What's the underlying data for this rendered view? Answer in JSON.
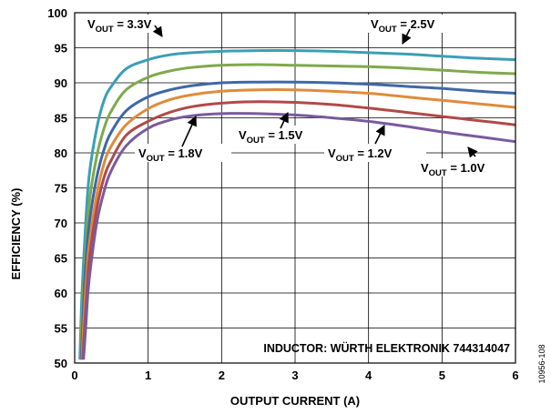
{
  "chart_data": {
    "type": "line",
    "xlabel": "OUTPUT CURRENT (A)",
    "ylabel": "EFFICIENCY (%)",
    "xlim": [
      0,
      6
    ],
    "ylim": [
      50,
      100
    ],
    "x_ticks": [
      "0",
      "1",
      "2",
      "3",
      "4",
      "5",
      "6"
    ],
    "y_ticks": [
      "50",
      "55",
      "60",
      "65",
      "70",
      "75",
      "80",
      "85",
      "90",
      "95",
      "100"
    ],
    "grid": true,
    "annotation": "INDUCTOR: WÜRTH ELEKTRONIK 744314047",
    "figure_id": "10956-108",
    "series": [
      {
        "name": "VOUT = 3.3V",
        "color": "#3a9fb5",
        "x": [
          0.07,
          0.1,
          0.15,
          0.2,
          0.3,
          0.4,
          0.5,
          0.7,
          1.0,
          1.3,
          1.6,
          2.0,
          2.5,
          3.0,
          3.5,
          4.0,
          4.5,
          5.0,
          5.5,
          6.0
        ],
        "y": [
          50.5,
          60,
          70,
          77,
          83.5,
          87.5,
          89.5,
          92,
          93.3,
          94,
          94.3,
          94.5,
          94.6,
          94.6,
          94.5,
          94.3,
          94.1,
          93.8,
          93.5,
          93.3
        ]
      },
      {
        "name": "VOUT = 2.5V",
        "color": "#7fa94a",
        "x": [
          0.08,
          0.1,
          0.15,
          0.2,
          0.3,
          0.4,
          0.5,
          0.7,
          1.0,
          1.3,
          1.6,
          2.0,
          2.5,
          3.0,
          3.5,
          4.0,
          4.5,
          5.0,
          5.5,
          6.0
        ],
        "y": [
          50.5,
          57,
          66,
          73,
          79.5,
          83.5,
          86,
          89,
          90.8,
          91.7,
          92.2,
          92.5,
          92.6,
          92.5,
          92.4,
          92.3,
          92.1,
          91.8,
          91.5,
          91.3
        ]
      },
      {
        "name": "VOUT = 1.8V",
        "color": "#3e68a8",
        "x": [
          0.09,
          0.12,
          0.15,
          0.2,
          0.3,
          0.4,
          0.5,
          0.7,
          1.0,
          1.3,
          1.6,
          2.0,
          2.5,
          3.0,
          3.5,
          4.0,
          4.5,
          5.0,
          5.5,
          6.0
        ],
        "y": [
          50.5,
          58,
          64,
          70,
          76.5,
          80.5,
          83,
          86,
          88,
          89,
          89.6,
          90,
          90.1,
          90.1,
          90,
          89.8,
          89.5,
          89.2,
          88.8,
          88.5
        ]
      },
      {
        "name": "VOUT = 1.5V",
        "color": "#e08b3a",
        "x": [
          0.1,
          0.13,
          0.16,
          0.2,
          0.3,
          0.4,
          0.5,
          0.7,
          1.0,
          1.3,
          1.6,
          2.0,
          2.5,
          3.0,
          3.5,
          4.0,
          4.5,
          5.0,
          5.5,
          6.0
        ],
        "y": [
          50.5,
          57,
          62,
          67,
          74,
          78.5,
          81,
          84,
          86.3,
          87.6,
          88.3,
          88.8,
          89,
          89,
          88.8,
          88.5,
          88,
          87.5,
          87,
          86.5
        ]
      },
      {
        "name": "VOUT = 1.2V",
        "color": "#b04a48",
        "x": [
          0.11,
          0.14,
          0.17,
          0.2,
          0.3,
          0.4,
          0.5,
          0.7,
          1.0,
          1.3,
          1.6,
          2.0,
          2.5,
          3.0,
          3.5,
          4.0,
          4.5,
          5.0,
          5.5,
          6.0
        ],
        "y": [
          50.5,
          56,
          61,
          65,
          72,
          76.5,
          79,
          82.5,
          84.5,
          85.8,
          86.6,
          87.1,
          87.3,
          87.2,
          86.9,
          86.4,
          85.8,
          85.2,
          84.6,
          84
        ]
      },
      {
        "name": "VOUT = 1.0V",
        "color": "#7a5a9e",
        "x": [
          0.12,
          0.15,
          0.18,
          0.22,
          0.3,
          0.4,
          0.5,
          0.7,
          1.0,
          1.3,
          1.6,
          2.0,
          2.5,
          3.0,
          3.5,
          4.0,
          4.5,
          5.0,
          5.5,
          6.0
        ],
        "y": [
          50.5,
          55,
          60,
          64,
          70,
          74.5,
          77.5,
          81,
          83.5,
          84.7,
          85.3,
          85.6,
          85.6,
          85.4,
          85,
          84.5,
          83.8,
          83,
          82.3,
          81.6
        ]
      }
    ]
  },
  "labels": [
    {
      "main": "V",
      "sub": "OUT",
      "rest": " = 3.3V"
    },
    {
      "main": "V",
      "sub": "OUT",
      "rest": " = 2.5V"
    },
    {
      "main": "V",
      "sub": "OUT",
      "rest": " = 1.8V"
    },
    {
      "main": "V",
      "sub": "OUT",
      "rest": " = 1.5V"
    },
    {
      "main": "V",
      "sub": "OUT",
      "rest": " = 1.2V"
    },
    {
      "main": "V",
      "sub": "OUT",
      "rest": " = 1.0V"
    }
  ]
}
